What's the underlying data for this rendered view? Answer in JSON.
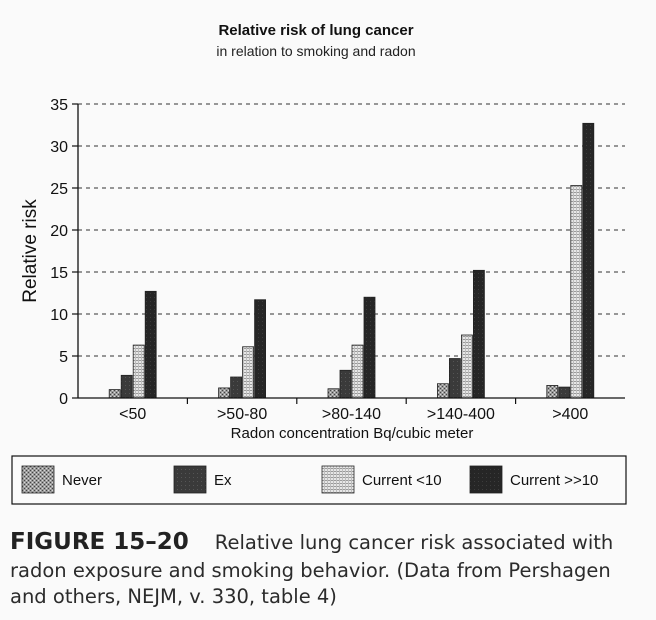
{
  "chart_data": {
    "type": "bar",
    "title": "Relative risk of lung cancer",
    "subtitle": "in relation to smoking and radon",
    "xlabel": "Radon concentration Bq/cubic meter",
    "ylabel": "Relative risk",
    "ylim": [
      0,
      35
    ],
    "yticks": [
      0,
      5,
      10,
      15,
      20,
      25,
      30,
      35
    ],
    "grid": "horizontal dashed",
    "legend_position": "bottom",
    "categories": [
      "<50",
      ">50-80",
      ">80-140",
      ">140-400",
      ">400"
    ],
    "series": [
      {
        "name": "Never",
        "values": [
          1.0,
          1.2,
          1.1,
          1.7,
          1.5
        ]
      },
      {
        "name": "Ex",
        "values": [
          2.7,
          2.5,
          3.3,
          4.7,
          1.3
        ]
      },
      {
        "name": "Current <10",
        "values": [
          6.3,
          6.1,
          6.3,
          7.5,
          25.3
        ]
      },
      {
        "name": "Current >>10",
        "values": [
          12.7,
          11.7,
          12.0,
          15.2,
          32.7
        ]
      }
    ]
  },
  "caption": {
    "label": "FIGURE 15–20",
    "text": "Relative lung cancer risk associated with radon exposure and smoking behavior. (Data from Pershagen and others, NEJM, v. 330, table 4)"
  }
}
